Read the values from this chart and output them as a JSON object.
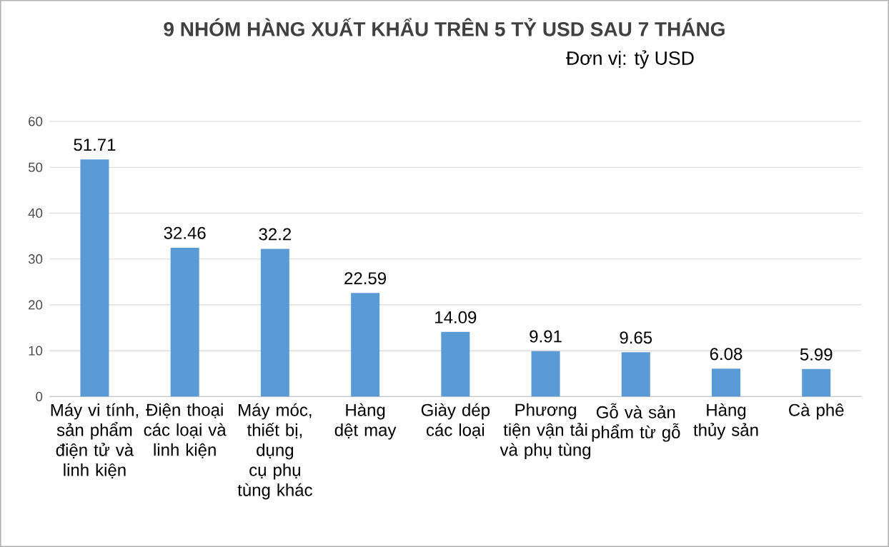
{
  "chart_data": {
    "type": "bar",
    "title": "9 NHÓM HÀNG XUẤT KHẨU TRÊN 5 TỶ USD SAU 7 THÁNG",
    "subtitle": "Đơn vị: tỷ USD",
    "categories": [
      "Máy vi tính, sản phẩm điện tử và linh kiện",
      "Điện thoại các loại và linh kiện",
      "Máy móc, thiết bị, dụng cụ phụ tùng khác",
      "Hàng dệt may",
      "Giày dép các loại",
      "Phương tiện vận tải và phụ tùng",
      "Gỗ và sản phẩm từ gỗ",
      "Hàng thủy sản",
      "Cà phê"
    ],
    "values": [
      51.71,
      32.46,
      32.2,
      22.59,
      14.09,
      9.91,
      9.65,
      6.08,
      5.99
    ],
    "color": "#5b9bd5",
    "ylim": [
      0,
      60
    ],
    "yticks": [
      0,
      10,
      20,
      30,
      40,
      50,
      60
    ],
    "grid": "y",
    "data_labels": true
  }
}
